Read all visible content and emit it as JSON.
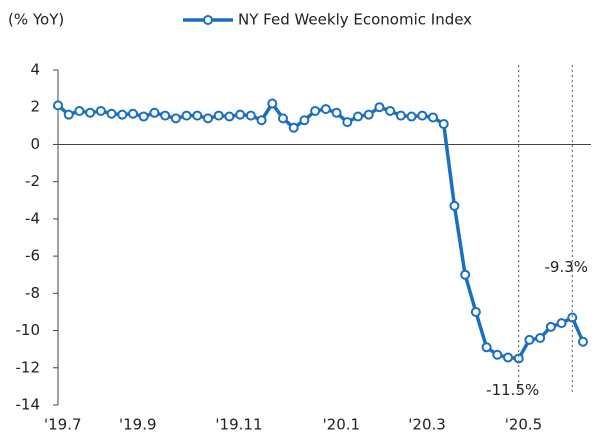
{
  "chart_data": {
    "type": "line",
    "y_label": "(% YoY)",
    "categories": [
      "'19.7",
      null,
      null,
      null,
      null,
      null,
      null,
      "'19.9",
      null,
      null,
      null,
      null,
      null,
      null,
      null,
      null,
      "'19.11",
      null,
      null,
      null,
      null,
      null,
      null,
      null,
      null,
      null,
      "'20.1",
      null,
      null,
      null,
      null,
      null,
      null,
      null,
      "'20.3",
      null,
      null,
      null,
      null,
      null,
      null,
      null,
      null,
      "'20.5",
      null,
      null,
      null,
      null,
      null,
      null
    ],
    "series": [
      {
        "name": "NY Fed Weekly Economic Index",
        "color": "#1b6fc0",
        "values": [
          2.1,
          1.6,
          1.8,
          1.7,
          1.8,
          1.65,
          1.6,
          1.65,
          1.5,
          1.7,
          1.55,
          1.4,
          1.55,
          1.55,
          1.4,
          1.55,
          1.5,
          1.6,
          1.55,
          1.3,
          2.2,
          1.4,
          0.9,
          1.3,
          1.8,
          1.9,
          1.7,
          1.2,
          1.5,
          1.6,
          2.0,
          1.8,
          1.55,
          1.5,
          1.55,
          1.45,
          1.1,
          -3.3,
          -7.0,
          -9.0,
          -10.9,
          -11.3,
          -11.45,
          -11.5,
          -10.5,
          -10.4,
          -9.8,
          -9.6,
          -9.3,
          -10.6
        ],
        "value_labels": [
          null,
          null,
          null,
          null,
          null,
          null,
          null,
          null,
          null,
          null,
          null,
          null,
          null,
          null,
          null,
          null,
          null,
          null,
          null,
          null,
          null,
          null,
          null,
          null,
          null,
          null,
          null,
          null,
          null,
          null,
          null,
          null,
          null,
          null,
          null,
          null,
          null,
          null,
          null,
          null,
          null,
          null,
          null,
          "-11.5%",
          null,
          null,
          null,
          null,
          "-9.3%",
          null
        ]
      }
    ],
    "ylim": [
      -14,
      4
    ],
    "yticks": [
      4,
      2,
      0,
      -2,
      -4,
      -6,
      -8,
      -10,
      -12,
      -14
    ],
    "legend": "top"
  }
}
